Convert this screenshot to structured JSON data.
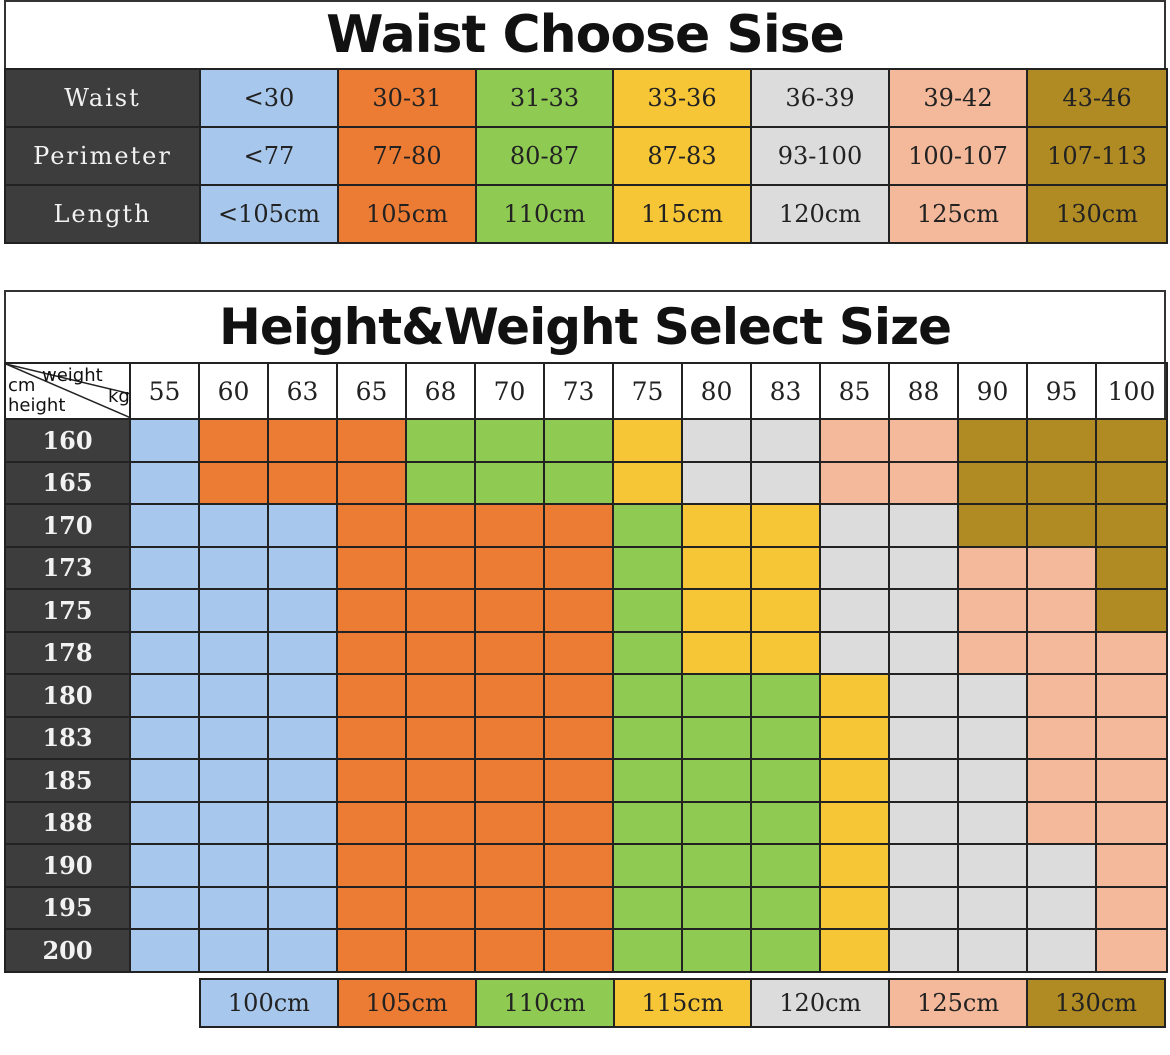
{
  "colors": {
    "c0": "#a7c7ec",
    "c1": "#ec7b34",
    "c2": "#8fca53",
    "c3": "#f7c636",
    "c4": "#dcdcdc",
    "c5": "#f4b89a",
    "c6": "#b08a22"
  },
  "waist_table": {
    "title": "Waist Choose Sise",
    "rows": [
      {
        "label": "Waist",
        "cells": [
          "<30",
          "30-31",
          "31-33",
          "33-36",
          "36-39",
          "39-42",
          "43-46"
        ]
      },
      {
        "label": "Perimeter",
        "cells": [
          "<77",
          "77-80",
          "80-87",
          "87-83",
          "93-100",
          "100-107",
          "107-113"
        ]
      },
      {
        "label": "Length",
        "cells": [
          "<105cm",
          "105cm",
          "110cm",
          "115cm",
          "120cm",
          "125cm",
          "130cm"
        ]
      }
    ]
  },
  "height_weight_table": {
    "title": "Height&Weight Select Size",
    "corner": {
      "top_right": "weight",
      "top_left": "cm",
      "right": "kg",
      "bottom_left": "height"
    },
    "weights": [
      "55",
      "60",
      "63",
      "65",
      "68",
      "70",
      "73",
      "75",
      "80",
      "83",
      "85",
      "88",
      "90",
      "95",
      "100"
    ],
    "heights": [
      "160",
      "165",
      "170",
      "173",
      "175",
      "178",
      "180",
      "183",
      "185",
      "188",
      "190",
      "195",
      "200"
    ],
    "grid": [
      [
        0,
        1,
        1,
        1,
        2,
        2,
        2,
        3,
        4,
        4,
        5,
        5,
        6,
        6,
        6
      ],
      [
        0,
        1,
        1,
        1,
        2,
        2,
        2,
        3,
        4,
        4,
        5,
        5,
        6,
        6,
        6
      ],
      [
        0,
        0,
        0,
        1,
        1,
        1,
        1,
        2,
        3,
        3,
        4,
        4,
        6,
        6,
        6
      ],
      [
        0,
        0,
        0,
        1,
        1,
        1,
        1,
        2,
        3,
        3,
        4,
        4,
        5,
        5,
        6
      ],
      [
        0,
        0,
        0,
        1,
        1,
        1,
        1,
        2,
        3,
        3,
        4,
        4,
        5,
        5,
        6
      ],
      [
        0,
        0,
        0,
        1,
        1,
        1,
        1,
        2,
        3,
        3,
        4,
        4,
        5,
        5,
        5
      ],
      [
        0,
        0,
        0,
        1,
        1,
        1,
        1,
        2,
        2,
        2,
        3,
        4,
        4,
        5,
        5
      ],
      [
        0,
        0,
        0,
        1,
        1,
        1,
        1,
        2,
        2,
        2,
        3,
        4,
        4,
        5,
        5
      ],
      [
        0,
        0,
        0,
        1,
        1,
        1,
        1,
        2,
        2,
        2,
        3,
        4,
        4,
        5,
        5
      ],
      [
        0,
        0,
        0,
        1,
        1,
        1,
        1,
        2,
        2,
        2,
        3,
        4,
        4,
        5,
        5
      ],
      [
        0,
        0,
        0,
        1,
        1,
        1,
        1,
        2,
        2,
        2,
        3,
        4,
        4,
        4,
        5
      ],
      [
        0,
        0,
        0,
        1,
        1,
        1,
        1,
        2,
        2,
        2,
        3,
        4,
        4,
        4,
        5
      ],
      [
        0,
        0,
        0,
        1,
        1,
        1,
        1,
        2,
        2,
        2,
        3,
        4,
        4,
        4,
        5
      ]
    ]
  },
  "legend": [
    "100cm",
    "105cm",
    "110cm",
    "115cm",
    "120cm",
    "125cm",
    "130cm"
  ]
}
